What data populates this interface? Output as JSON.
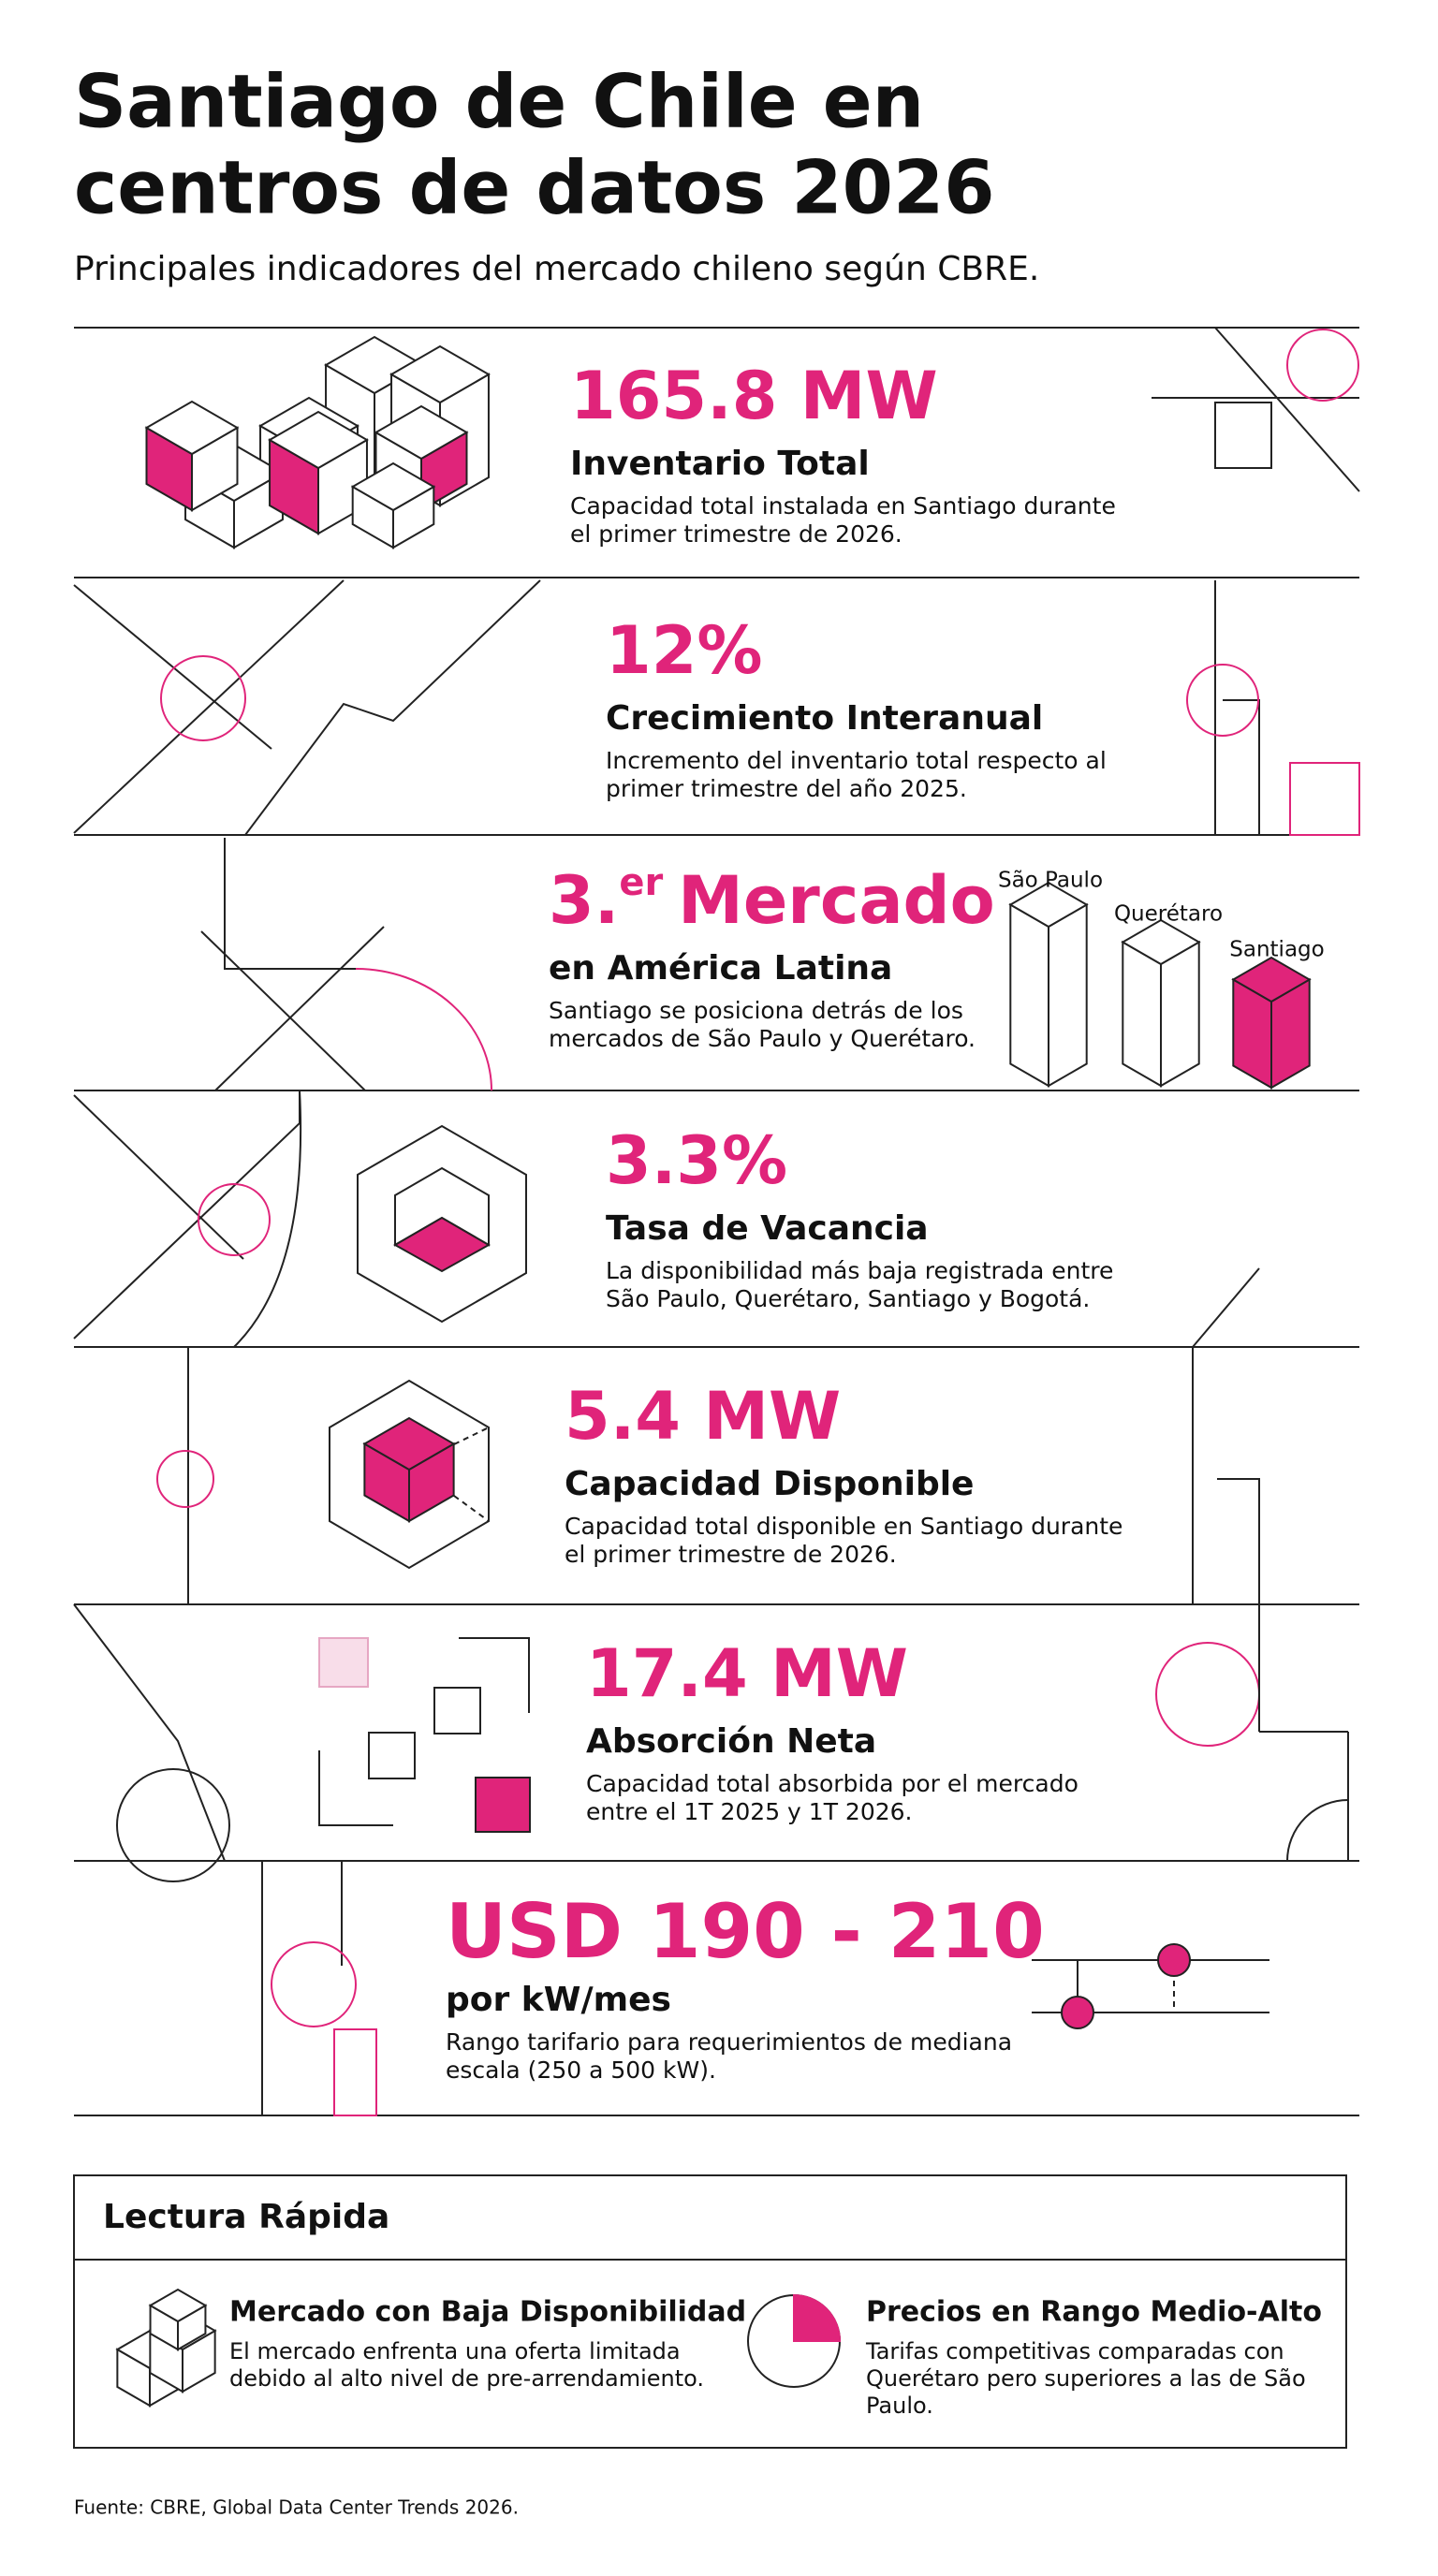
{
  "header": {
    "title": [
      "Santiago de Chile en",
      "centros de datos 2026"
    ],
    "subtitle": "Principales indicadores del mercado chileno según CBRE."
  },
  "metrics": [
    {
      "value": "165.8 MW",
      "label": "Inventario Total",
      "description": [
        "Capacidad total instalada en Santiago durante",
        "el primer trimestre de 2026."
      ]
    },
    {
      "value": "12%",
      "label": "Crecimiento Interanual",
      "description": [
        "Incremento del inventario total respecto al",
        "primer trimestre del año 2025."
      ]
    },
    {
      "value": "3.",
      "value_superscript": "er",
      "value_suffix": "Mercado",
      "label": "en América Latina",
      "description": [
        "Santiago se posiciona detrás de los",
        "mercados de São Paulo y Querétaro."
      ],
      "markets": [
        "São Paulo",
        "Querétaro",
        "Santiago"
      ]
    },
    {
      "value": "3.3%",
      "label": "Tasa de Vacancia",
      "description": [
        "La disponibilidad más baja registrada entre",
        "São Paulo, Querétaro, Santiago y Bogotá."
      ]
    },
    {
      "value": "5.4 MW",
      "label": "Capacidad Disponible",
      "description": [
        "Capacidad total disponible en Santiago durante",
        "el primer trimestre de 2026."
      ]
    },
    {
      "value": "17.4 MW",
      "label": "Absorción Neta",
      "description": [
        "Capacidad total absorbida por el mercado",
        "entre el 1T 2025 y 1T 2026."
      ]
    },
    {
      "value": "USD 190 - 210",
      "label": "por kW/mes",
      "description": [
        "Rango tarifario para requerimientos de mediana",
        "escala (250 a 500 kW)."
      ]
    }
  ],
  "quick_read": {
    "title": "Lectura Rápida",
    "items": [
      {
        "title": "Mercado con Baja Disponibilidad",
        "description": [
          "El mercado enfrenta una oferta limitada",
          "debido al alto nivel de pre-arrendamiento."
        ]
      },
      {
        "title": "Precios en Rango Medio-Alto",
        "description": [
          "Tarifas competitivas comparadas con",
          "Querétaro pero superiores a las de São",
          "Paulo."
        ]
      }
    ]
  },
  "footer": "Fuente: CBRE, Global Data Center Trends 2026."
}
